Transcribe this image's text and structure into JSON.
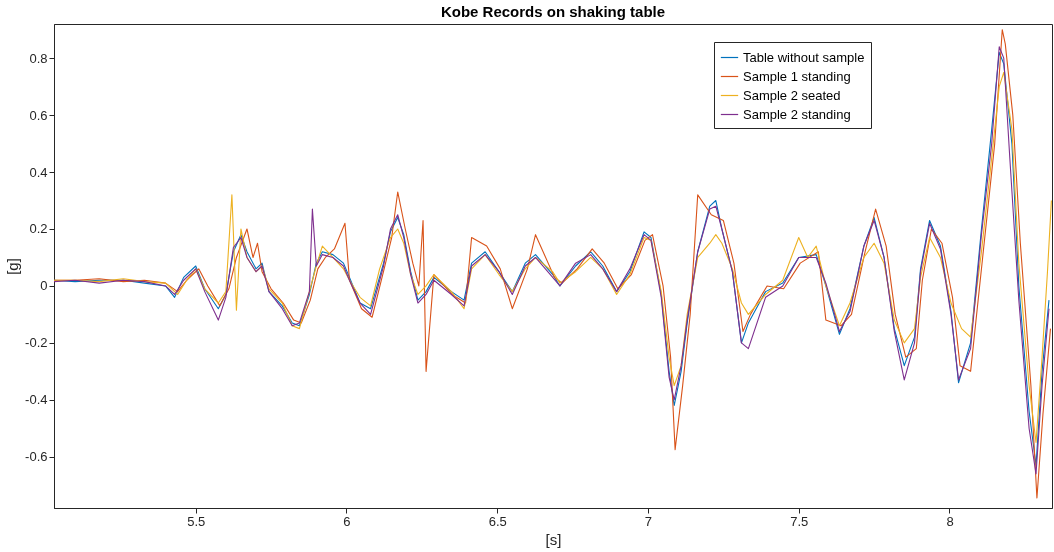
{
  "chart_data": {
    "type": "line",
    "title": "Kobe Records on shaking table",
    "xlabel": "[s]",
    "ylabel": "[g]",
    "xlim": [
      5.03,
      8.34
    ],
    "xticks": [
      5.5,
      6,
      6.5,
      7,
      7.5,
      8
    ],
    "ylim": [
      -0.78,
      0.92
    ],
    "yticks": [
      -0.6,
      -0.4,
      -0.2,
      0,
      0.2,
      0.4,
      0.6,
      0.8
    ],
    "grid": false,
    "legend": "top right",
    "marker": "none",
    "line_style": "solid",
    "series": [
      {
        "name": "Table without sample",
        "color": "#0072bd",
        "x": [
          5.03,
          5.1,
          5.18,
          5.26,
          5.33,
          5.4,
          5.43,
          5.46,
          5.5,
          5.53,
          5.575,
          5.6,
          5.625,
          5.65,
          5.67,
          5.7,
          5.72,
          5.743,
          5.787,
          5.82,
          5.844,
          5.877,
          5.9,
          5.92,
          5.955,
          5.99,
          6.01,
          6.045,
          6.08,
          6.123,
          6.146,
          6.17,
          6.19,
          6.213,
          6.237,
          6.264,
          6.29,
          6.348,
          6.39,
          6.415,
          6.46,
          6.506,
          6.55,
          6.593,
          6.627,
          6.684,
          6.708,
          6.76,
          6.81,
          6.85,
          6.896,
          6.94,
          6.987,
          7.01,
          7.044,
          7.07,
          7.087,
          7.11,
          7.13,
          7.165,
          7.205,
          7.225,
          7.245,
          7.28,
          7.31,
          7.333,
          7.39,
          7.447,
          7.5,
          7.558,
          7.59,
          7.635,
          7.67,
          7.716,
          7.75,
          7.783,
          7.817,
          7.85,
          7.884,
          7.904,
          7.934,
          7.97,
          8.005,
          8.03,
          8.07,
          8.106,
          8.14,
          8.165,
          8.18,
          8.207,
          8.23,
          8.264,
          8.287,
          8.307,
          8.33
        ],
        "values": [
          0.02,
          0.015,
          0.02,
          0.02,
          0.01,
          0.0,
          -0.04,
          0.03,
          0.07,
          -0.01,
          -0.08,
          -0.03,
          0.12,
          0.18,
          0.12,
          0.06,
          0.08,
          -0.02,
          -0.07,
          -0.13,
          -0.14,
          -0.03,
          0.08,
          0.12,
          0.11,
          0.08,
          0.03,
          -0.06,
          -0.08,
          0.08,
          0.19,
          0.24,
          0.18,
          0.05,
          -0.05,
          -0.02,
          0.03,
          -0.02,
          -0.05,
          0.08,
          0.12,
          0.05,
          -0.02,
          0.08,
          0.11,
          0.04,
          0.0,
          0.07,
          0.12,
          0.07,
          -0.02,
          0.05,
          0.19,
          0.17,
          -0.03,
          -0.3,
          -0.42,
          -0.3,
          -0.13,
          0.12,
          0.28,
          0.3,
          0.2,
          0.05,
          -0.2,
          -0.13,
          -0.02,
          0.01,
          0.1,
          0.11,
          0.0,
          -0.17,
          -0.08,
          0.14,
          0.24,
          0.1,
          -0.15,
          -0.28,
          -0.18,
          0.06,
          0.23,
          0.14,
          -0.09,
          -0.34,
          -0.2,
          0.2,
          0.55,
          0.82,
          0.78,
          0.5,
          0.0,
          -0.44,
          -0.63,
          -0.3,
          -0.05
        ]
      },
      {
        "name": "Sample 1 standing",
        "color": "#d95319",
        "x": [
          5.03,
          5.1,
          5.18,
          5.26,
          5.33,
          5.4,
          5.44,
          5.47,
          5.51,
          5.54,
          5.58,
          5.61,
          5.635,
          5.67,
          5.69,
          5.705,
          5.72,
          5.75,
          5.79,
          5.825,
          5.85,
          5.88,
          5.905,
          5.93,
          5.96,
          5.995,
          6.01,
          6.05,
          6.085,
          6.125,
          6.15,
          6.17,
          6.195,
          6.22,
          6.24,
          6.254,
          6.264,
          6.29,
          6.35,
          6.395,
          6.415,
          6.465,
          6.51,
          6.55,
          6.6,
          6.627,
          6.69,
          6.715,
          6.765,
          6.815,
          6.855,
          6.9,
          6.945,
          6.99,
          7.015,
          7.05,
          7.075,
          7.09,
          7.115,
          7.14,
          7.165,
          7.21,
          7.25,
          7.285,
          7.315,
          7.34,
          7.395,
          7.45,
          7.505,
          7.565,
          7.59,
          7.64,
          7.675,
          7.72,
          7.755,
          7.79,
          7.82,
          7.855,
          7.89,
          7.91,
          7.94,
          7.975,
          8.01,
          8.035,
          8.07,
          8.11,
          8.15,
          8.175,
          8.185,
          8.21,
          8.235,
          8.27,
          8.29,
          8.31,
          8.335
        ],
        "values": [
          0.02,
          0.02,
          0.025,
          0.015,
          0.02,
          0.01,
          -0.02,
          0.02,
          0.06,
          0.0,
          -0.07,
          -0.01,
          0.1,
          0.2,
          0.1,
          0.15,
          0.05,
          -0.01,
          -0.06,
          -0.12,
          -0.13,
          -0.05,
          0.06,
          0.1,
          0.13,
          0.22,
          0.02,
          -0.08,
          -0.11,
          0.06,
          0.17,
          0.33,
          0.2,
          0.08,
          0.0,
          0.23,
          -0.3,
          0.04,
          -0.03,
          -0.06,
          0.17,
          0.14,
          0.06,
          -0.08,
          0.06,
          0.18,
          0.03,
          0.01,
          0.06,
          0.13,
          0.08,
          -0.01,
          0.04,
          0.16,
          0.18,
          0.0,
          -0.25,
          -0.575,
          -0.35,
          -0.1,
          0.32,
          0.25,
          0.23,
          0.08,
          -0.16,
          -0.1,
          0.0,
          -0.01,
          0.08,
          0.12,
          -0.12,
          -0.14,
          -0.1,
          0.12,
          0.27,
          0.14,
          -0.1,
          -0.25,
          -0.22,
          0.02,
          0.2,
          0.15,
          -0.04,
          -0.28,
          -0.3,
          0.1,
          0.5,
          0.9,
          0.85,
          0.6,
          0.15,
          -0.35,
          -0.745,
          -0.45,
          -0.15
        ]
      },
      {
        "name": "Sample 2 seated",
        "color": "#edb120",
        "x": [
          5.03,
          5.1,
          5.18,
          5.26,
          5.33,
          5.4,
          5.44,
          5.47,
          5.5,
          5.53,
          5.575,
          5.6,
          5.62,
          5.635,
          5.65,
          5.67,
          5.7,
          5.72,
          5.743,
          5.787,
          5.82,
          5.844,
          5.877,
          5.9,
          5.92,
          5.955,
          5.99,
          6.01,
          6.045,
          6.08,
          6.11,
          6.146,
          6.17,
          6.19,
          6.213,
          6.237,
          6.264,
          6.29,
          6.348,
          6.39,
          6.415,
          6.46,
          6.506,
          6.55,
          6.593,
          6.627,
          6.684,
          6.708,
          6.76,
          6.81,
          6.85,
          6.896,
          6.94,
          6.987,
          7.01,
          7.044,
          7.07,
          7.087,
          7.11,
          7.13,
          7.165,
          7.205,
          7.225,
          7.245,
          7.28,
          7.31,
          7.333,
          7.39,
          7.447,
          7.5,
          7.53,
          7.558,
          7.59,
          7.635,
          7.67,
          7.716,
          7.75,
          7.783,
          7.817,
          7.85,
          7.884,
          7.904,
          7.934,
          7.97,
          8.005,
          8.04,
          8.07,
          8.106,
          8.14,
          8.165,
          8.18,
          8.207,
          8.23,
          8.264,
          8.287,
          8.307,
          8.325,
          8.338
        ],
        "values": [
          0.02,
          0.02,
          0.015,
          0.025,
          0.015,
          0.01,
          -0.03,
          0.02,
          0.06,
          -0.01,
          -0.06,
          -0.02,
          0.32,
          -0.085,
          0.2,
          0.1,
          0.05,
          0.07,
          -0.01,
          -0.06,
          -0.14,
          -0.15,
          -0.02,
          0.07,
          0.14,
          0.1,
          0.06,
          0.02,
          -0.04,
          -0.07,
          0.06,
          0.17,
          0.2,
          0.15,
          0.04,
          -0.03,
          0.0,
          0.04,
          -0.02,
          -0.08,
          0.06,
          0.11,
          0.04,
          -0.02,
          0.06,
          0.1,
          0.05,
          0.01,
          0.05,
          0.1,
          0.06,
          -0.03,
          0.04,
          0.17,
          0.16,
          -0.02,
          -0.25,
          -0.35,
          -0.28,
          -0.1,
          0.1,
          0.15,
          0.18,
          0.15,
          0.06,
          -0.06,
          -0.1,
          -0.03,
          0.02,
          0.17,
          0.1,
          0.14,
          0.0,
          -0.14,
          -0.06,
          0.1,
          0.15,
          0.08,
          -0.12,
          -0.2,
          -0.15,
          0.03,
          0.17,
          0.1,
          -0.06,
          -0.15,
          -0.18,
          0.12,
          0.45,
          0.7,
          0.75,
          0.55,
          0.08,
          -0.35,
          -0.55,
          -0.25,
          0.05,
          0.3
        ]
      },
      {
        "name": "Sample 2 standing",
        "color": "#7e2f8e",
        "x": [
          5.03,
          5.1,
          5.18,
          5.26,
          5.33,
          5.4,
          5.43,
          5.46,
          5.5,
          5.53,
          5.575,
          5.6,
          5.625,
          5.65,
          5.67,
          5.7,
          5.72,
          5.743,
          5.787,
          5.82,
          5.844,
          5.877,
          5.887,
          5.9,
          5.92,
          5.955,
          5.99,
          6.01,
          6.045,
          6.08,
          6.123,
          6.146,
          6.17,
          6.19,
          6.213,
          6.237,
          6.264,
          6.29,
          6.348,
          6.39,
          6.415,
          6.46,
          6.506,
          6.55,
          6.593,
          6.627,
          6.684,
          6.708,
          6.76,
          6.81,
          6.85,
          6.896,
          6.94,
          6.987,
          7.01,
          7.044,
          7.07,
          7.087,
          7.11,
          7.13,
          7.165,
          7.205,
          7.225,
          7.245,
          7.28,
          7.31,
          7.333,
          7.39,
          7.447,
          7.5,
          7.558,
          7.59,
          7.635,
          7.67,
          7.716,
          7.75,
          7.783,
          7.817,
          7.85,
          7.884,
          7.904,
          7.934,
          7.97,
          8.005,
          8.03,
          8.07,
          8.106,
          8.14,
          8.165,
          8.18,
          8.2,
          8.23,
          8.264,
          8.287,
          8.307,
          8.33
        ],
        "values": [
          0.015,
          0.02,
          0.01,
          0.02,
          0.015,
          0.0,
          -0.03,
          0.02,
          0.06,
          -0.02,
          -0.12,
          -0.04,
          0.135,
          0.17,
          0.1,
          0.05,
          0.07,
          -0.02,
          -0.08,
          -0.14,
          -0.13,
          -0.02,
          0.27,
          0.07,
          0.11,
          0.1,
          0.07,
          0.02,
          -0.06,
          -0.1,
          0.07,
          0.2,
          0.25,
          0.17,
          0.04,
          -0.06,
          -0.03,
          0.02,
          -0.03,
          -0.07,
          0.07,
          0.11,
          0.05,
          -0.03,
          0.07,
          0.1,
          0.03,
          0.0,
          0.08,
          0.11,
          0.06,
          -0.02,
          0.06,
          0.18,
          0.16,
          -0.04,
          -0.32,
          -0.4,
          -0.28,
          -0.12,
          0.12,
          0.27,
          0.28,
          0.2,
          0.05,
          -0.2,
          -0.22,
          -0.04,
          0.0,
          0.1,
          0.1,
          0.01,
          -0.16,
          -0.09,
          0.14,
          0.23,
          0.1,
          -0.16,
          -0.33,
          -0.2,
          0.05,
          0.22,
          0.13,
          -0.1,
          -0.33,
          -0.22,
          0.18,
          0.5,
          0.84,
          0.8,
          0.45,
          -0.05,
          -0.5,
          -0.66,
          -0.35,
          -0.08
        ]
      }
    ]
  }
}
